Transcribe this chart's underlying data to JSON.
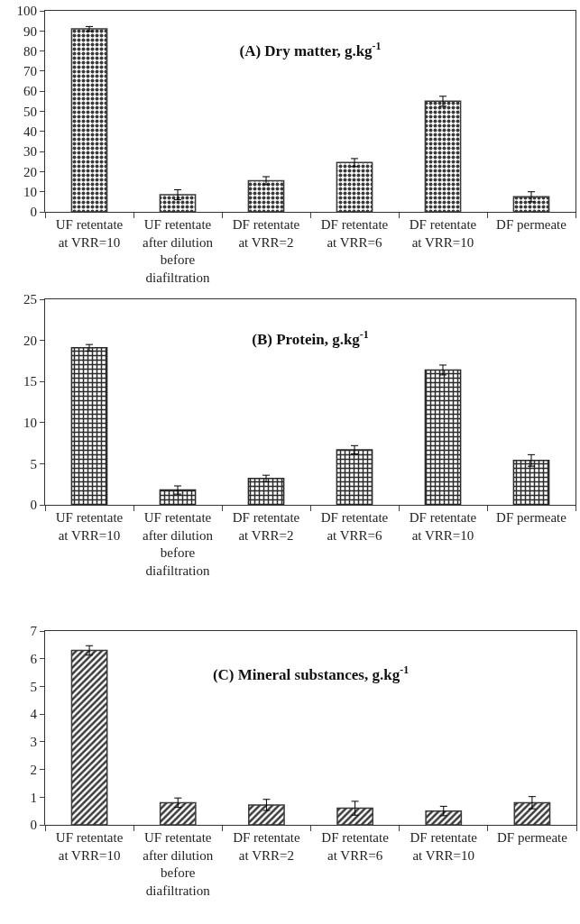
{
  "chart_data": [
    {
      "type": "bar",
      "title": "(A) Dry matter, g.kg$^{-1}$",
      "categories": [
        "UF retentate at VRR=10",
        "UF retentate after dilution before diafiltration",
        "DF retentate at VRR=2",
        "DF retentate at VRR=6",
        "DF retentate at VRR=10",
        "DF permeate"
      ],
      "values": [
        91,
        8.5,
        15.5,
        24.5,
        55,
        7.5
      ],
      "errors": [
        1.2,
        2.5,
        2,
        2,
        2.5,
        2.5
      ],
      "color": "#3a3a3a",
      "ylim": [
        0,
        100
      ],
      "yticks": [
        0,
        10,
        20,
        30,
        40,
        50,
        60,
        70,
        80,
        90,
        100
      ]
    },
    {
      "type": "bar",
      "title": "(B) Protein, g.kg$^{-1}$",
      "categories": [
        "UF retentate at VRR=10",
        "UF retentate after dilution before diafiltration",
        "DF retentate at VRR=2",
        "DF retentate at VRR=6",
        "DF retentate at VRR=10",
        "DF permeate"
      ],
      "values": [
        19.1,
        1.8,
        3.2,
        6.7,
        16.4,
        5.4
      ],
      "errors": [
        0.4,
        0.5,
        0.4,
        0.5,
        0.6,
        0.7
      ],
      "color": "#2a2a2a",
      "ylim": [
        0,
        25
      ],
      "yticks": [
        0,
        5,
        10,
        15,
        20,
        25
      ]
    },
    {
      "type": "bar",
      "title": "(C) Mineral substances, g.kg$^{-1}$",
      "categories": [
        "UF retentate at VRR=10",
        "UF retentate after dilution before diafiltration",
        "DF retentate at VRR=2",
        "DF retentate at VRR=6",
        "DF retentate at VRR=10",
        "DF permeate"
      ],
      "values": [
        6.3,
        0.8,
        0.72,
        0.6,
        0.5,
        0.8
      ],
      "errors": [
        0.17,
        0.17,
        0.2,
        0.25,
        0.17,
        0.22
      ],
      "color": "#3a3a3a",
      "ylim": [
        0,
        7
      ],
      "yticks": [
        0,
        1,
        2,
        3,
        4,
        5,
        6,
        7
      ]
    }
  ]
}
